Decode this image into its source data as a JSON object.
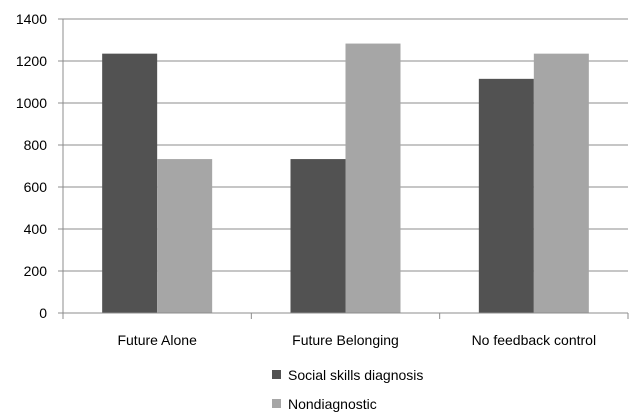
{
  "chart_data": {
    "type": "bar",
    "categories": [
      "Future Alone",
      "Future Belonging",
      "No feedback control"
    ],
    "series": [
      {
        "name": "Social skills diagnosis",
        "values": [
          1235,
          733,
          1115
        ],
        "color": "#525252"
      },
      {
        "name": "Nondiagnostic",
        "values": [
          733,
          1283,
          1235
        ],
        "color": "#a6a6a6"
      }
    ],
    "ylim": [
      0,
      1400
    ],
    "yticks": [
      0,
      200,
      400,
      600,
      800,
      1000,
      1200,
      1400
    ],
    "grid": true,
    "legend_position": "bottom"
  }
}
